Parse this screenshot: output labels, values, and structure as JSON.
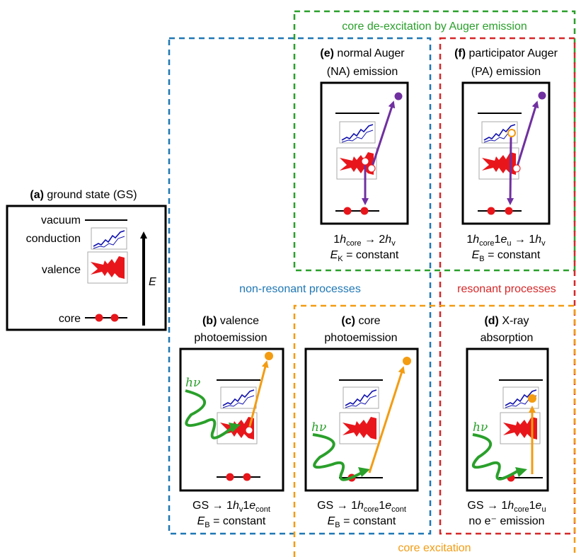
{
  "colors": {
    "blue": "#1f77b4",
    "green": "#2aa02b",
    "red": "#d62728",
    "orange": "#f39c12",
    "purple": "#7030a0",
    "electron_red": "#e8161b",
    "dos_blue": "#1010b0"
  },
  "groups": {
    "auger": "core de-excitation by Auger emission",
    "non_resonant": "non-resonant processes",
    "resonant": "resonant processes",
    "core_excitation": "core excitation"
  },
  "panel_a": {
    "letter": "(a)",
    "title": "ground state (GS)",
    "vacuum": "vacuum",
    "conduction": "conduction",
    "valence": "valence",
    "core": "core",
    "energy": "E"
  },
  "panel_b": {
    "letter": "(b)",
    "title1": "valence",
    "title2": "photoemission",
    "photon": "hν",
    "f1": {
      "pre": "GS → 1",
      "h": "h",
      "sub1": "v",
      "mid": "1",
      "e": "e",
      "sub2": "cont"
    },
    "f2": {
      "E": "E",
      "sub": "B",
      "rest": " = constant"
    }
  },
  "panel_c": {
    "letter": "(c)",
    "title1": "core",
    "title2": "photoemission",
    "photon": "hν",
    "f1": {
      "pre": "GS → 1",
      "h": "h",
      "sub1": "core",
      "mid": "1",
      "e": "e",
      "sub2": "cont"
    },
    "f2": {
      "E": "E",
      "sub": "B",
      "rest": " = constant"
    }
  },
  "panel_d": {
    "letter": "(d)",
    "title1": "X-ray",
    "title2": "absorption",
    "photon": "hν",
    "f1": {
      "pre": "GS → 1",
      "h": "h",
      "sub1": "core",
      "mid": "1",
      "e": "e",
      "sub2": "u"
    },
    "f2": "no e⁻ emission"
  },
  "panel_e": {
    "letter": "(e)",
    "title1": "normal Auger",
    "title2": "(NA) emission",
    "f1": {
      "pre": "1",
      "h": "h",
      "sub1": "core",
      "arrow": " → 2",
      "h2": "h",
      "sub2": "v"
    },
    "f2": {
      "E": "E",
      "sub": "K",
      "rest": " = constant"
    }
  },
  "panel_f": {
    "letter": "(f)",
    "title1": "participator Auger",
    "title2": "(PA) emission",
    "f1": {
      "pre": "1",
      "h": "h",
      "sub1": "core",
      "mid": "1",
      "e": "e",
      "sub2": "u",
      "arrow": " → 1",
      "h2": "h",
      "sub3": "v"
    },
    "f2": {
      "E": "E",
      "sub": "B",
      "rest": " = constant"
    }
  }
}
